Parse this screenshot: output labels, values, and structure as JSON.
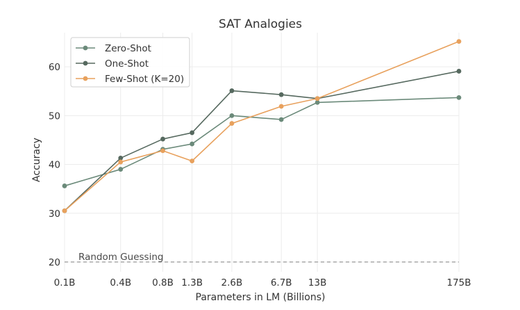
{
  "chart_data": {
    "type": "line",
    "title": "SAT Analogies",
    "xlabel": "Parameters in LM (Billions)",
    "ylabel": "Accuracy",
    "categories": [
      "0.1B",
      "0.4B",
      "0.8B",
      "1.3B",
      "2.6B",
      "6.7B",
      "13B",
      "175B"
    ],
    "x": [
      0.125,
      0.35,
      0.76,
      1.3,
      2.7,
      6.7,
      13,
      175
    ],
    "x_scale": "log",
    "ylim": [
      18,
      67
    ],
    "yticks": [
      20,
      30,
      40,
      50,
      60
    ],
    "grid": true,
    "legend_position": "top-left",
    "series": [
      {
        "name": "Zero-Shot",
        "color": "#6b8a7a",
        "values": [
          35.6,
          39.0,
          43.1,
          44.2,
          50.0,
          49.2,
          52.7,
          53.7
        ]
      },
      {
        "name": "One-Shot",
        "color": "#56695f",
        "values": [
          30.5,
          41.3,
          45.2,
          46.5,
          55.1,
          54.3,
          53.5,
          59.1
        ]
      },
      {
        "name": "Few-Shot (K=20)",
        "color": "#e8a15d",
        "values": [
          30.5,
          40.5,
          42.8,
          40.7,
          48.4,
          51.9,
          53.5,
          65.2
        ]
      }
    ],
    "baseline": {
      "label": "Random Guessing",
      "value": 20,
      "color": "#a0a0a0"
    }
  }
}
